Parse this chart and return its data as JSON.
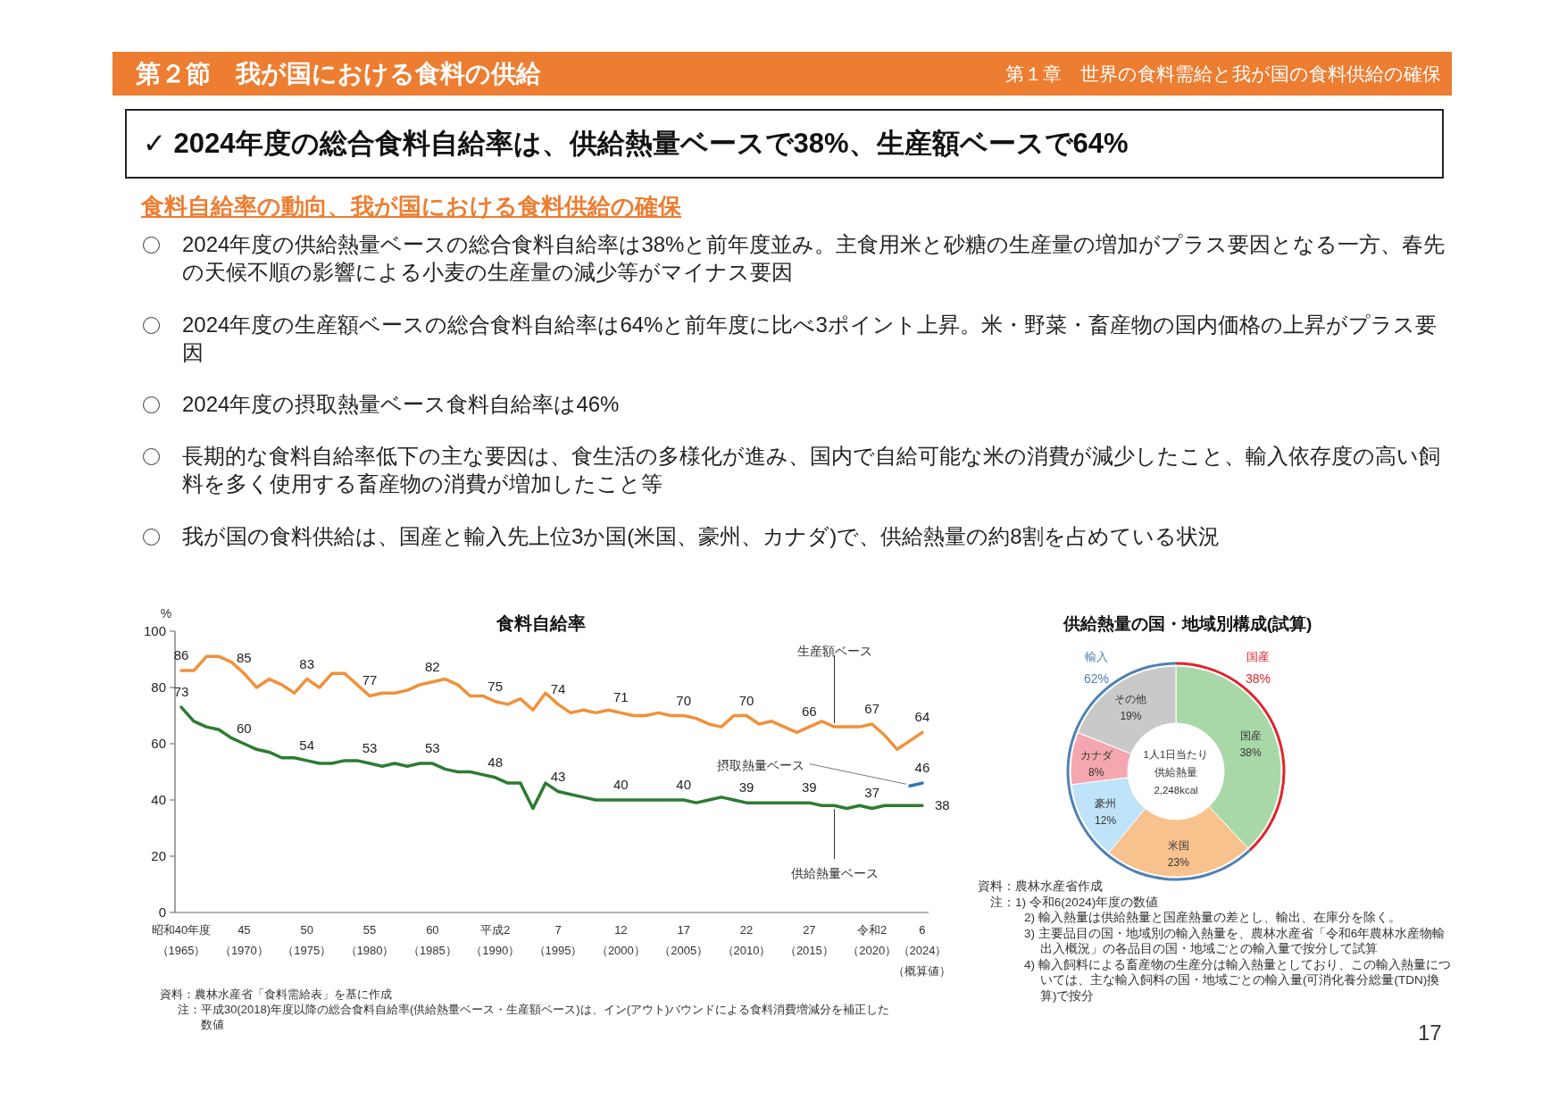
{
  "chart_data": [
    {
      "type": "other",
      "title": "第２節　我が国における食料の供給",
      "subtitle": "第１章　世界の食料需給と我が国の食料供給の確保",
      "annotations": [
        "✓ 2024年度の総合食料自給率は、供給熱量ベースで38%、生産額ベースで64%",
        "食料自給率の動向、我が国における食料供給の確保",
        "2024年度の供給熱量ベースの総合食料自給率は38%と前年度並み。主食用米と砂糖の生産量の増加がプラス要因となる一方、春先の天候不順の影響による小麦の生産量の減少等がマイナス要因",
        "2024年度の生産額ベースの総合食料自給率は64%と前年度に比べ3ポイント上昇。米・野菜・畜産物の国内価格の上昇がプラス要因",
        "2024年度の摂取熱量ベース食料自給率は46%",
        "長期的な食料自給率低下の主な要因は、食生活の多様化が進み、国内で自給可能な米の消費が減少したこと、輸入依存度の高い飼料を多く使用する畜産物の消費が増加したこと等",
        "我が国の食料供給は、国産と輸入先上位3か国(米国、豪州、カナダ)で、供給熱量の約8割を占めている状況",
        "17"
      ]
    },
    {
      "type": "line",
      "title": "食料自給率",
      "ylabel": "%",
      "categories": [
        "昭和40年度（1965）",
        null,
        null,
        null,
        null,
        "45（1970）",
        null,
        null,
        null,
        null,
        "50（1975）",
        null,
        null,
        null,
        null,
        "55（1980）",
        null,
        null,
        null,
        null,
        "60（1985）",
        null,
        null,
        null,
        null,
        "平成2（1990）",
        null,
        null,
        null,
        null,
        "7（1995）",
        null,
        null,
        null,
        null,
        "12（2000）",
        null,
        null,
        null,
        null,
        "17（2005）",
        null,
        null,
        null,
        null,
        "22（2010）",
        null,
        null,
        null,
        null,
        "27（2015）",
        null,
        null,
        null,
        null,
        "令和2（2020）",
        null,
        null,
        null,
        "6（2024）（概算値）"
      ],
      "ylim": [
        0,
        100
      ],
      "yticks": [
        0,
        20,
        40,
        60,
        80,
        100
      ],
      "series": [
        {
          "name": "生産額ベース",
          "color": "#f0913a",
          "values": [
            86,
            86,
            91,
            91,
            89,
            85,
            80,
            83,
            81,
            78,
            83,
            80,
            85,
            85,
            81,
            77,
            78,
            78,
            79,
            81,
            82,
            83,
            81,
            77,
            77,
            75,
            74,
            76,
            72,
            78,
            74,
            71,
            72,
            71,
            72,
            71,
            70,
            70,
            71,
            70,
            70,
            69,
            67,
            66,
            70,
            70,
            67,
            68,
            66,
            64,
            66,
            68,
            66,
            66,
            66,
            67,
            63,
            58,
            61,
            64
          ],
          "value_labels": [
            "86",
            null,
            null,
            null,
            null,
            "85",
            null,
            null,
            null,
            null,
            "83",
            null,
            null,
            null,
            null,
            "77",
            null,
            null,
            null,
            null,
            "82",
            null,
            null,
            null,
            null,
            "75",
            null,
            null,
            null,
            null,
            "74",
            null,
            null,
            null,
            null,
            "71",
            null,
            null,
            null,
            null,
            "70",
            null,
            null,
            null,
            null,
            "70",
            null,
            null,
            null,
            null,
            "66",
            null,
            null,
            null,
            null,
            "67",
            null,
            null,
            null,
            "64"
          ]
        },
        {
          "name": "供給熱量ベース",
          "color": "#2e7b32",
          "values": [
            73,
            68,
            66,
            65,
            62,
            60,
            58,
            57,
            55,
            55,
            54,
            53,
            53,
            54,
            54,
            53,
            52,
            53,
            52,
            53,
            53,
            51,
            50,
            50,
            49,
            48,
            46,
            46,
            37,
            46,
            43,
            42,
            41,
            40,
            40,
            40,
            40,
            40,
            40,
            40,
            40,
            39,
            40,
            41,
            40,
            39,
            39,
            39,
            39,
            39,
            39,
            38,
            38,
            37,
            38,
            37,
            38,
            38,
            38,
            38
          ],
          "value_labels": [
            "73",
            null,
            null,
            null,
            null,
            "60",
            null,
            null,
            null,
            null,
            "54",
            null,
            null,
            null,
            null,
            "53",
            null,
            null,
            null,
            null,
            "53",
            null,
            null,
            null,
            null,
            "48",
            null,
            null,
            null,
            null,
            "43",
            null,
            null,
            null,
            null,
            "40",
            null,
            null,
            null,
            null,
            "40",
            null,
            null,
            null,
            null,
            "39",
            null,
            null,
            null,
            null,
            "39",
            null,
            null,
            null,
            null,
            "37",
            null,
            null,
            null,
            "38"
          ]
        },
        {
          "name": "摂取熱量ベース",
          "color": "#2e75b6",
          "values": [
            null,
            null,
            null,
            null,
            null,
            null,
            null,
            null,
            null,
            null,
            null,
            null,
            null,
            null,
            null,
            null,
            null,
            null,
            null,
            null,
            null,
            null,
            null,
            null,
            null,
            null,
            null,
            null,
            null,
            null,
            null,
            null,
            null,
            null,
            null,
            null,
            null,
            null,
            null,
            null,
            null,
            null,
            null,
            null,
            null,
            null,
            null,
            null,
            null,
            null,
            null,
            null,
            null,
            null,
            null,
            null,
            null,
            null,
            45,
            46
          ],
          "value_labels": [
            null,
            null,
            null,
            null,
            null,
            null,
            null,
            null,
            null,
            null,
            null,
            null,
            null,
            null,
            null,
            null,
            null,
            null,
            null,
            null,
            null,
            null,
            null,
            null,
            null,
            null,
            null,
            null,
            null,
            null,
            null,
            null,
            null,
            null,
            null,
            null,
            null,
            null,
            null,
            null,
            null,
            null,
            null,
            null,
            null,
            null,
            null,
            null,
            null,
            null,
            null,
            null,
            null,
            null,
            null,
            null,
            null,
            null,
            null,
            "46"
          ]
        }
      ],
      "annotations": [
        "資料：農林水産省「食料需給表」を基に作成",
        "注：平成30(2018)年度以降の総合食料自給率(供給熱量ベース・生産額ベース)は、イン(アウト)バウンドによる食料消費増減分を補正した数値"
      ]
    },
    {
      "type": "donut",
      "title": "供給熱量の国・地域別構成(試算)",
      "categories": [
        "国産",
        "米国",
        "豪州",
        "カナダ",
        "その他"
      ],
      "values": [
        38,
        23,
        12,
        8,
        19
      ],
      "colors": [
        "#a8d8a8",
        "#f8c28e",
        "#bfe3f8",
        "#f4a7b0",
        "#c9c9c9"
      ],
      "value_labels": [
        "38%",
        "23%",
        "12%",
        "8%",
        "19%"
      ],
      "annotations": [
        "1人1日当たり",
        "供給熱量",
        "2,248kcal",
        "資料：農林水産省作成",
        "注：1) 令和6(2024)年度の数値",
        "2) 輸入熱量は供給熱量と国産熱量の差とし、輸出、在庫分を除く。",
        "3) 主要品目の国・地域別の輸入熱量を、農林水産省「令和6年農林水産物輸出入概況」の各品目の国・地域ごとの輸入量で按分して試算",
        "4) 輸入飼料による畜産物の生産分は輸入熱量としており、この輸入熱量については、主な輸入飼料の国・地域ごとの輸入量(可消化養分総量(TDN)換算)で按分"
      ]
    },
    {
      "type": "donut",
      "categories": [
        "国産",
        "輸入"
      ],
      "values": [
        38,
        62
      ],
      "colors": [
        "#e0242b",
        "#4f81b4"
      ],
      "value_labels": [
        "38%",
        "62%"
      ]
    }
  ]
}
